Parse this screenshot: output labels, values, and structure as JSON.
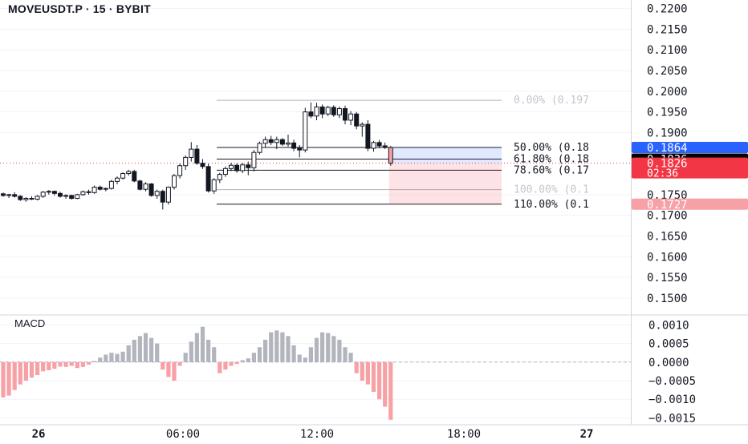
{
  "header": {
    "title": "MOVEUSDT.P · 15 · BYBIT"
  },
  "chart_data": {
    "type": "candlestick",
    "title": "MOVEUSDT.P · 15 · BYBIT",
    "x_ticks": [
      "26",
      "06:00",
      "12:00",
      "18:00",
      "27"
    ],
    "price_axis": {
      "ticks": [
        "0.2200",
        "0.2150",
        "0.2100",
        "0.2050",
        "0.2000",
        "0.1950",
        "0.1900",
        "0.1750",
        "0.1700",
        "0.1650",
        "0.1600",
        "0.1550",
        "0.1500"
      ],
      "ylim": [
        0.1465,
        0.2205
      ]
    },
    "price_tags": [
      {
        "value": 0.1864,
        "label": "0.1864",
        "color": "#2962ff"
      },
      {
        "value": 0.1836,
        "label": "0.1836",
        "color": "#000000"
      },
      {
        "value": 0.1826,
        "label": "0.1826",
        "sub": "02:36",
        "color": "#f23645"
      },
      {
        "value": 0.1727,
        "label": "0.1727",
        "color": "#f7a1a6"
      }
    ],
    "fib_levels": [
      {
        "label": "0.00% (0.197",
        "faded": true
      },
      {
        "label": "50.00% (0.18",
        "faded": false
      },
      {
        "label": "61.80% (0.18",
        "faded": false
      },
      {
        "label": "78.60% (0.17",
        "faded": false
      },
      {
        "label": "100.00% (0.1",
        "faded": true
      },
      {
        "label": "110.00% (0.1",
        "faded": false
      }
    ],
    "fib_values": [
      0.1978,
      0.1864,
      0.1836,
      0.1809,
      0.1762,
      0.1727
    ],
    "position_box": {
      "entry": 0.1864,
      "target": 0.1826,
      "stop": 0.1727,
      "start_index": 68
    },
    "candles": [
      [
        0.1752,
        0.1755,
        0.1745,
        0.1748
      ],
      [
        0.1748,
        0.1752,
        0.1742,
        0.175
      ],
      [
        0.175,
        0.1756,
        0.1743,
        0.1746
      ],
      [
        0.1746,
        0.1749,
        0.1735,
        0.1738
      ],
      [
        0.1738,
        0.1744,
        0.1733,
        0.1741
      ],
      [
        0.1741,
        0.1746,
        0.1737,
        0.1739
      ],
      [
        0.1739,
        0.1749,
        0.1736,
        0.1746
      ],
      [
        0.1746,
        0.1759,
        0.1742,
        0.1756
      ],
      [
        0.1756,
        0.1761,
        0.175,
        0.1758
      ],
      [
        0.1758,
        0.176,
        0.1748,
        0.1753
      ],
      [
        0.1753,
        0.1757,
        0.1743,
        0.1746
      ],
      [
        0.1746,
        0.1751,
        0.174,
        0.1748
      ],
      [
        0.1748,
        0.175,
        0.1738,
        0.1741
      ],
      [
        0.1741,
        0.1752,
        0.1739,
        0.175
      ],
      [
        0.175,
        0.176,
        0.1747,
        0.1757
      ],
      [
        0.1757,
        0.1762,
        0.175,
        0.1755
      ],
      [
        0.1755,
        0.1772,
        0.1752,
        0.1768
      ],
      [
        0.1768,
        0.1772,
        0.176,
        0.1763
      ],
      [
        0.1763,
        0.1767,
        0.1758,
        0.1765
      ],
      [
        0.1765,
        0.1786,
        0.1762,
        0.1782
      ],
      [
        0.1782,
        0.1794,
        0.1775,
        0.179
      ],
      [
        0.179,
        0.1804,
        0.1786,
        0.1801
      ],
      [
        0.1801,
        0.181,
        0.1796,
        0.1806
      ],
      [
        0.1806,
        0.181,
        0.178,
        0.1783
      ],
      [
        0.1783,
        0.1786,
        0.176,
        0.1763
      ],
      [
        0.1763,
        0.178,
        0.1758,
        0.1776
      ],
      [
        0.1776,
        0.1778,
        0.1745,
        0.1748
      ],
      [
        0.1748,
        0.1762,
        0.174,
        0.1758
      ],
      [
        0.1758,
        0.1762,
        0.1714,
        0.1732
      ],
      [
        0.1732,
        0.177,
        0.1726,
        0.1768
      ],
      [
        0.1768,
        0.18,
        0.1762,
        0.1796
      ],
      [
        0.1796,
        0.1825,
        0.1789,
        0.182
      ],
      [
        0.182,
        0.1845,
        0.181,
        0.184
      ],
      [
        0.184,
        0.1877,
        0.183,
        0.186
      ],
      [
        0.186,
        0.187,
        0.1822,
        0.1826
      ],
      [
        0.1826,
        0.1836,
        0.1812,
        0.1818
      ],
      [
        0.1818,
        0.1825,
        0.1755,
        0.1759
      ],
      [
        0.1759,
        0.179,
        0.1752,
        0.1786
      ],
      [
        0.1786,
        0.1803,
        0.1778,
        0.1799
      ],
      [
        0.1799,
        0.1818,
        0.1793,
        0.1813
      ],
      [
        0.1813,
        0.1827,
        0.1807,
        0.1821
      ],
      [
        0.1821,
        0.1826,
        0.1803,
        0.1808
      ],
      [
        0.1808,
        0.1827,
        0.1802,
        0.1822
      ],
      [
        0.1822,
        0.183,
        0.1797,
        0.1815
      ],
      [
        0.1815,
        0.1858,
        0.1806,
        0.1852
      ],
      [
        0.1852,
        0.1878,
        0.1847,
        0.1874
      ],
      [
        0.1874,
        0.189,
        0.1865,
        0.1883
      ],
      [
        0.1883,
        0.1892,
        0.187,
        0.1876
      ],
      [
        0.1876,
        0.189,
        0.186,
        0.1883
      ],
      [
        0.1883,
        0.1887,
        0.1868,
        0.1872
      ],
      [
        0.1872,
        0.1895,
        0.1866,
        0.1875
      ],
      [
        0.1875,
        0.1883,
        0.1855,
        0.1862
      ],
      [
        0.1862,
        0.187,
        0.184,
        0.1858
      ],
      [
        0.1858,
        0.196,
        0.1852,
        0.195
      ],
      [
        0.195,
        0.1973,
        0.1935,
        0.194
      ],
      [
        0.194,
        0.1972,
        0.193,
        0.1962
      ],
      [
        0.1962,
        0.1968,
        0.1935,
        0.1945
      ],
      [
        0.1945,
        0.1965,
        0.194,
        0.1961
      ],
      [
        0.1961,
        0.1966,
        0.1938,
        0.1943
      ],
      [
        0.1943,
        0.1963,
        0.1935,
        0.1958
      ],
      [
        0.1958,
        0.1965,
        0.192,
        0.193
      ],
      [
        0.193,
        0.1952,
        0.1918,
        0.1945
      ],
      [
        0.1945,
        0.195,
        0.1908,
        0.1916
      ],
      [
        0.1916,
        0.1925,
        0.189,
        0.192
      ],
      [
        0.192,
        0.193,
        0.1855,
        0.1862
      ],
      [
        0.1862,
        0.188,
        0.1854,
        0.1876
      ],
      [
        0.1876,
        0.1882,
        0.1862,
        0.1868
      ],
      [
        0.1868,
        0.1876,
        0.186,
        0.1864
      ],
      [
        0.1864,
        0.1868,
        0.182,
        0.1826
      ]
    ],
    "macd": {
      "axis_ticks": [
        "0.0010",
        "0.0005",
        "0.0000",
        "−0.0005",
        "−0.0010",
        "−0.0015"
      ],
      "ylim": [
        -0.00162,
        0.00118
      ],
      "histogram": [
        -0.00095,
        -0.0009,
        -0.00075,
        -0.0006,
        -0.0005,
        -0.00042,
        -0.00035,
        -0.00025,
        -0.00022,
        -0.00018,
        -0.00012,
        -0.00013,
        -0.0001,
        -0.00016,
        -0.00013,
        -7e-05,
        3e-05,
        0.00012,
        0.0002,
        0.00025,
        0.00022,
        0.00028,
        0.00045,
        0.0006,
        0.0007,
        0.00078,
        0.00065,
        0.0005,
        -0.0002,
        -0.0004,
        -0.0005,
        -0.0001,
        0.00025,
        0.00055,
        0.00078,
        0.00095,
        0.0006,
        0.0004,
        -0.0003,
        -0.0002,
        -0.0001,
        -5e-05,
        5e-05,
        0.0001,
        0.00025,
        0.0004,
        0.0006,
        0.0008,
        0.00085,
        0.0008,
        0.0007,
        0.00045,
        0.0002,
        0.00012,
        0.0004,
        0.00065,
        0.0008,
        0.00078,
        0.0007,
        0.0006,
        0.0004,
        0.00025,
        -0.0003,
        -0.0005,
        -0.0006,
        -0.0008,
        -0.001,
        -0.0012,
        -0.00155
      ]
    }
  }
}
